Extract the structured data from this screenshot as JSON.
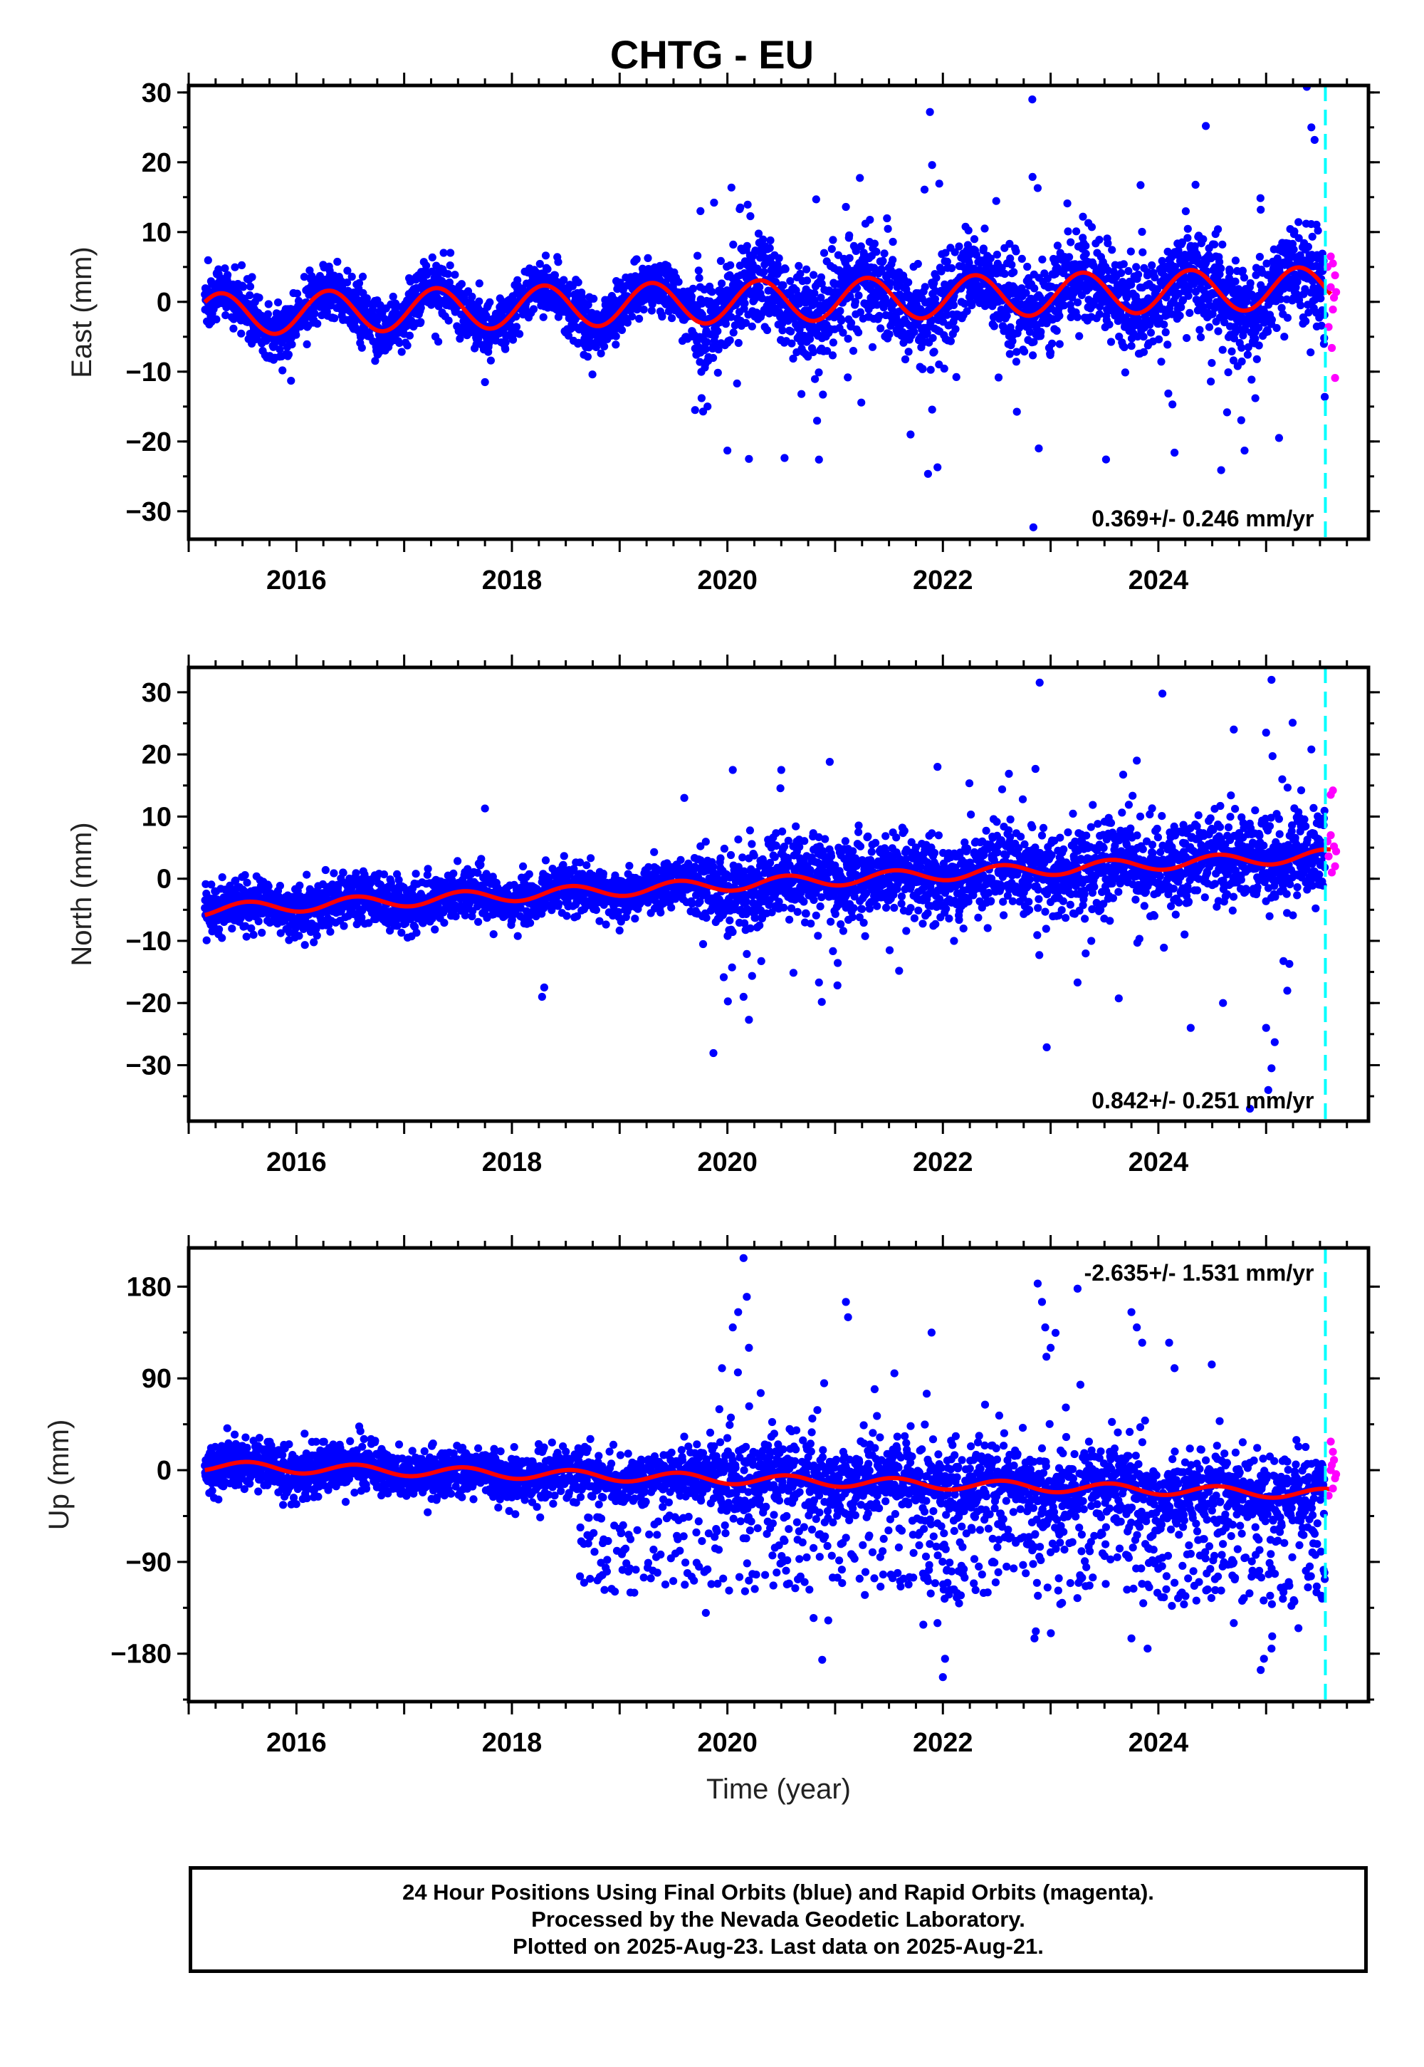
{
  "title": "CHTG - EU",
  "footer": {
    "line1": "24 Hour Positions Using Final Orbits (blue) and Rapid Orbits (magenta).",
    "line2": "Processed by the Nevada Geodetic Laboratory.",
    "line3": "Plotted on 2025-Aug-23. Last data on 2025-Aug-21."
  },
  "colors": {
    "final": "#0000ff",
    "rapid": "#ff00ff",
    "model": "#ff0000",
    "divider": "#00ffff"
  },
  "chart_data": [
    {
      "type": "scatter",
      "ylabel": "East (mm)",
      "xlabel": "",
      "xlim": [
        2015.0,
        2025.95
      ],
      "ylim": [
        -34,
        31
      ],
      "xticks": [
        2016,
        2018,
        2020,
        2022,
        2024
      ],
      "yticks": [
        30,
        20,
        10,
        0,
        -10,
        -20,
        -30
      ],
      "ytick_labels": [
        "30",
        "20",
        "10",
        "0",
        "−10",
        "−20",
        "−30"
      ],
      "rate": "0.369+/- 0.246 mm/yr",
      "rate_position": "bottom-right",
      "divider_x": 2025.55,
      "model": {
        "offset": -1.8,
        "slope": 0.369,
        "ref_year": 2015.2,
        "amplitude": 3.0,
        "phase": 2015.05
      },
      "scatter_sigma": 2.0,
      "outliers": [
        {
          "x": 2021.88,
          "y": 27.2
        },
        {
          "x": 2022.83,
          "y": 29.0
        },
        {
          "x": 2021.9,
          "y": 19.6
        },
        {
          "x": 2022.88,
          "y": 16.3
        },
        {
          "x": 2025.42,
          "y": 25.0
        },
        {
          "x": 2025.45,
          "y": 23.2
        },
        {
          "x": 2022.84,
          "y": -32.3
        },
        {
          "x": 2020.2,
          "y": -22.5
        },
        {
          "x": 2021.95,
          "y": -23.7
        },
        {
          "x": 2020.85,
          "y": -22.6
        },
        {
          "x": 2020.0,
          "y": -21.3
        },
        {
          "x": 2024.8,
          "y": -21.3
        },
        {
          "x": 2024.15,
          "y": -21.6
        },
        {
          "x": 2019.7,
          "y": -15.5
        },
        {
          "x": 2021.7,
          "y": -19.0
        },
        {
          "x": 2022.89,
          "y": -21.0
        },
        {
          "x": 2025.12,
          "y": -19.5
        },
        {
          "x": 2015.95,
          "y": -11.3
        },
        {
          "x": 2017.75,
          "y": -11.5
        },
        {
          "x": 2024.9,
          "y": -13.8
        },
        {
          "x": 2019.75,
          "y": 13.0
        },
        {
          "x": 2021.1,
          "y": 13.6
        },
        {
          "x": 2023.3,
          "y": 12.2
        },
        {
          "x": 2024.95,
          "y": 13.2
        }
      ],
      "rapid": [
        {
          "x": 2025.6,
          "y": 6.5
        },
        {
          "x": 2025.62,
          "y": 5.5
        },
        {
          "x": 2025.64,
          "y": 3.8
        },
        {
          "x": 2025.6,
          "y": 2.1
        },
        {
          "x": 2025.63,
          "y": 0.6
        },
        {
          "x": 2025.62,
          "y": -1.1
        },
        {
          "x": 2025.58,
          "y": -3.6
        },
        {
          "x": 2025.61,
          "y": -6.6
        },
        {
          "x": 2025.64,
          "y": -10.9
        },
        {
          "x": 2025.57,
          "y": 5.0
        },
        {
          "x": 2025.65,
          "y": 1.4
        }
      ]
    },
    {
      "type": "scatter",
      "ylabel": "North (mm)",
      "xlabel": "",
      "xlim": [
        2015.0,
        2025.95
      ],
      "ylim": [
        -39,
        34
      ],
      "xticks": [
        2016,
        2018,
        2020,
        2022,
        2024
      ],
      "yticks": [
        30,
        20,
        10,
        0,
        -10,
        -20,
        -30
      ],
      "ytick_labels": [
        "30",
        "20",
        "10",
        "0",
        "−10",
        "−20",
        "−30"
      ],
      "rate": "0.842+/- 0.251 mm/yr",
      "rate_position": "bottom-right",
      "divider_x": 2025.55,
      "model": {
        "offset": -5.0,
        "slope": 0.842,
        "ref_year": 2015.2,
        "amplitude": 1.0,
        "phase": 2015.3
      },
      "scatter_sigma": 2.0,
      "outliers": [
        {
          "x": 2025.05,
          "y": 32.0
        },
        {
          "x": 2024.7,
          "y": 24.0
        },
        {
          "x": 2025.0,
          "y": 23.5
        },
        {
          "x": 2020.05,
          "y": 17.5
        },
        {
          "x": 2020.5,
          "y": 17.5
        },
        {
          "x": 2020.95,
          "y": 18.8
        },
        {
          "x": 2021.95,
          "y": 18.0
        },
        {
          "x": 2023.8,
          "y": 19.0
        },
        {
          "x": 2025.42,
          "y": 20.8
        },
        {
          "x": 2017.75,
          "y": 11.3
        },
        {
          "x": 2018.28,
          "y": -19.0
        },
        {
          "x": 2018.3,
          "y": -17.5
        },
        {
          "x": 2020.2,
          "y": -22.7
        },
        {
          "x": 2020.15,
          "y": -19.0
        },
        {
          "x": 2020.85,
          "y": -16.7
        },
        {
          "x": 2023.25,
          "y": -16.7
        },
        {
          "x": 2024.3,
          "y": -24.0
        },
        {
          "x": 2025.0,
          "y": -24.0
        },
        {
          "x": 2025.05,
          "y": -30.5
        },
        {
          "x": 2025.02,
          "y": -34.0
        },
        {
          "x": 2024.85,
          "y": -37.0
        },
        {
          "x": 2025.08,
          "y": -26.3
        },
        {
          "x": 2024.6,
          "y": -20.0
        },
        {
          "x": 2019.6,
          "y": 13.0
        },
        {
          "x": 2025.15,
          "y": 16.0
        }
      ],
      "rapid": [
        {
          "x": 2025.62,
          "y": 14.2
        },
        {
          "x": 2025.6,
          "y": 13.5
        },
        {
          "x": 2025.6,
          "y": 7.0
        },
        {
          "x": 2025.63,
          "y": 5.2
        },
        {
          "x": 2025.58,
          "y": 3.6
        },
        {
          "x": 2025.64,
          "y": 2.0
        },
        {
          "x": 2025.61,
          "y": 1.0
        },
        {
          "x": 2025.57,
          "y": 6.0
        },
        {
          "x": 2025.65,
          "y": 4.4
        }
      ]
    },
    {
      "type": "scatter",
      "ylabel": "Up (mm)",
      "xlabel": "Time (year)",
      "xlim": [
        2015.0,
        2025.95
      ],
      "ylim": [
        -227,
        218
      ],
      "xticks": [
        2016,
        2018,
        2020,
        2022,
        2024
      ],
      "yticks": [
        180,
        90,
        0,
        -90,
        -180
      ],
      "ytick_labels": [
        "180",
        "90",
        "0",
        "−90",
        "−180"
      ],
      "rate": "-2.635+/- 1.531 mm/yr",
      "rate_position": "top-right",
      "divider_x": 2025.55,
      "model": {
        "offset": 4.0,
        "slope": -2.635,
        "ref_year": 2015.2,
        "amplitude": 5.0,
        "phase": 2015.3
      },
      "scatter_sigma": 12,
      "outliers": [
        {
          "x": 2020.15,
          "y": 208
        },
        {
          "x": 2020.18,
          "y": 170
        },
        {
          "x": 2020.1,
          "y": 155
        },
        {
          "x": 2020.05,
          "y": 140
        },
        {
          "x": 2020.2,
          "y": 120
        },
        {
          "x": 2019.95,
          "y": 100
        },
        {
          "x": 2021.1,
          "y": 165
        },
        {
          "x": 2021.12,
          "y": 150
        },
        {
          "x": 2022.88,
          "y": 183
        },
        {
          "x": 2022.92,
          "y": 165
        },
        {
          "x": 2022.95,
          "y": 140
        },
        {
          "x": 2023.0,
          "y": 120
        },
        {
          "x": 2023.25,
          "y": 178
        },
        {
          "x": 2023.75,
          "y": 155
        },
        {
          "x": 2023.8,
          "y": 140
        },
        {
          "x": 2023.85,
          "y": 125
        },
        {
          "x": 2024.1,
          "y": 125
        },
        {
          "x": 2024.15,
          "y": 100
        },
        {
          "x": 2021.55,
          "y": 95
        },
        {
          "x": 2021.85,
          "y": 75
        },
        {
          "x": 2022.0,
          "y": -203
        },
        {
          "x": 2022.02,
          "y": -185
        },
        {
          "x": 2020.88,
          "y": -186
        },
        {
          "x": 2024.95,
          "y": -196
        },
        {
          "x": 2024.98,
          "y": -185
        },
        {
          "x": 2025.05,
          "y": -175
        },
        {
          "x": 2023.75,
          "y": -165
        },
        {
          "x": 2023.9,
          "y": -175
        },
        {
          "x": 2022.85,
          "y": -165
        },
        {
          "x": 2019.8,
          "y": -140
        },
        {
          "x": 2020.8,
          "y": -145
        },
        {
          "x": 2021.95,
          "y": -150
        },
        {
          "x": 2024.7,
          "y": -150
        },
        {
          "x": 2019.1,
          "y": -120
        },
        {
          "x": 2025.3,
          "y": -155
        }
      ],
      "rapid": [
        {
          "x": 2025.6,
          "y": 28
        },
        {
          "x": 2025.62,
          "y": 18
        },
        {
          "x": 2025.63,
          "y": 10
        },
        {
          "x": 2025.6,
          "y": 0
        },
        {
          "x": 2025.64,
          "y": -8
        },
        {
          "x": 2025.62,
          "y": -18
        },
        {
          "x": 2025.58,
          "y": -25
        },
        {
          "x": 2025.61,
          "y": 5
        },
        {
          "x": 2025.65,
          "y": -4
        }
      ]
    }
  ]
}
